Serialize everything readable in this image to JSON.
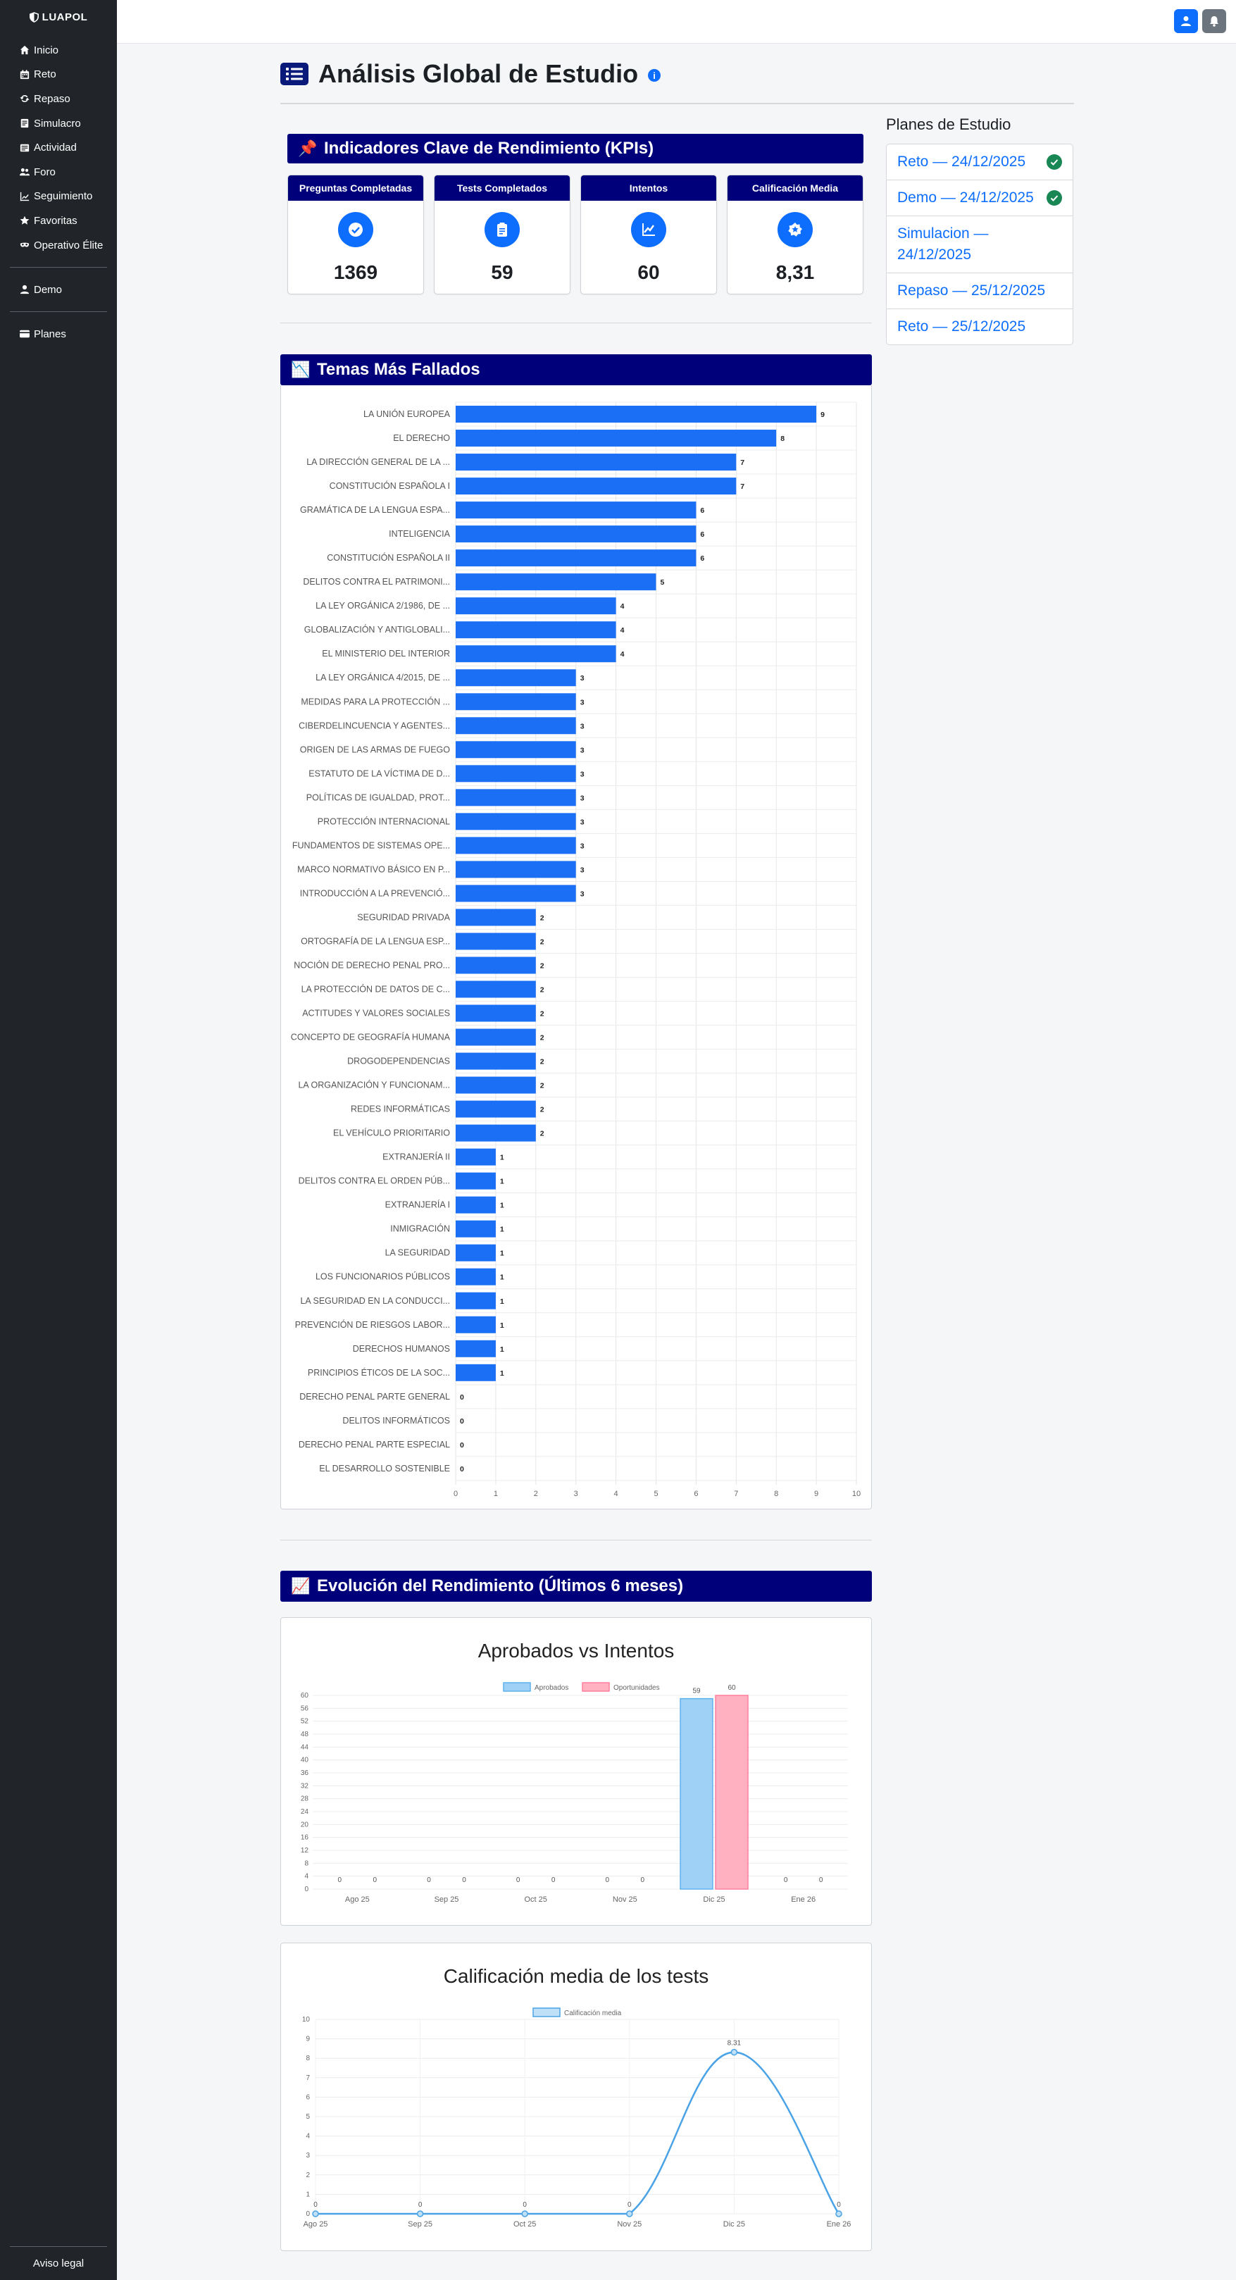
{
  "brand": "LUAPOL",
  "nav": [
    {
      "label": "Inicio",
      "icon": "home-icon"
    },
    {
      "label": "Reto",
      "icon": "calendar-icon"
    },
    {
      "label": "Repaso",
      "icon": "refresh-icon"
    },
    {
      "label": "Simulacro",
      "icon": "document-icon"
    },
    {
      "label": "Actividad",
      "icon": "activity-icon"
    },
    {
      "label": "Foro",
      "icon": "users-icon"
    },
    {
      "label": "Seguimiento",
      "icon": "chart-icon"
    },
    {
      "label": "Favoritas",
      "icon": "star-icon"
    },
    {
      "label": "Operativo Élite",
      "icon": "mask-icon"
    }
  ],
  "sidebar_demo": "Demo",
  "sidebar_planes": "Planes",
  "sidebar_footer": "Aviso legal",
  "page_title": "Análisis Global de Estudio",
  "kpi_section_title": "Indicadores Clave de Rendimiento (KPIs)",
  "kpis": [
    {
      "label": "Preguntas Completadas",
      "value": "1369",
      "icon": "check-circle-icon"
    },
    {
      "label": "Tests Completados",
      "value": "59",
      "icon": "clipboard-icon"
    },
    {
      "label": "Intentos",
      "value": "60",
      "icon": "trend-icon"
    },
    {
      "label": "Calificación Media",
      "value": "8,31",
      "icon": "star-badge-icon"
    }
  ],
  "plans_title": "Planes de Estudio",
  "plans": [
    {
      "label": "Reto — 24/12/2025",
      "done": true
    },
    {
      "label": "Demo — 24/12/2025",
      "done": true
    },
    {
      "label": "Simulacion — 24/12/2025",
      "done": false
    },
    {
      "label": "Repaso — 25/12/2025",
      "done": false
    },
    {
      "label": "Reto — 25/12/2025",
      "done": false
    }
  ],
  "topics_section_title": "Temas Más Fallados",
  "evolution_section_title": "Evolución del Rendimiento (Últimos 6 meses)",
  "chart_data": [
    {
      "type": "bar",
      "orientation": "horizontal",
      "categories": [
        "LA UNIÓN EUROPEA",
        "EL DERECHO",
        "LA DIRECCIÓN GENERAL DE LA ...",
        "CONSTITUCIÓN ESPAÑOLA I",
        "GRAMÁTICA DE LA LENGUA ESPA...",
        "INTELIGENCIA",
        "CONSTITUCIÓN ESPAÑOLA II",
        "DELITOS CONTRA EL PATRIMONI...",
        "LA LEY ORGÁNICA 2/1986, DE ...",
        "GLOBALIZACIÓN Y ANTIGLOBALI...",
        "EL MINISTERIO DEL INTERIOR",
        "LA LEY ORGÁNICA 4/2015, DE ...",
        "MEDIDAS PARA LA PROTECCIÓN ...",
        "CIBERDELINCUENCIA Y AGENTES...",
        "ORIGEN DE LAS ARMAS DE FUEGO",
        "ESTATUTO DE LA VÍCTIMA DE D...",
        "POLÍTICAS DE IGUALDAD, PROT...",
        "PROTECCIÓN INTERNACIONAL",
        "FUNDAMENTOS DE SISTEMAS OPE...",
        "MARCO NORMATIVO BÁSICO EN P...",
        "INTRODUCCIÓN A LA PREVENCIÓ...",
        "SEGURIDAD PRIVADA",
        "ORTOGRAFÍA DE LA LENGUA ESP...",
        "NOCIÓN DE DERECHO PENAL PRO...",
        "LA PROTECCIÓN DE DATOS DE C...",
        "ACTITUDES Y VALORES SOCIALES",
        "CONCEPTO DE GEOGRAFÍA HUMANA",
        "DROGODEPENDENCIAS",
        "LA ORGANIZACIÓN Y FUNCIONAM...",
        "REDES INFORMÁTICAS",
        "EL VEHÍCULO PRIORITARIO",
        "EXTRANJERÍA II",
        "DELITOS CONTRA EL ORDEN PÚB...",
        "EXTRANJERÍA I",
        "INMIGRACIÓN",
        "LA SEGURIDAD",
        "LOS FUNCIONARIOS PÚBLICOS",
        "LA SEGURIDAD EN LA CONDUCCI...",
        "PREVENCIÓN DE RIESGOS LABOR...",
        "DERECHOS HUMANOS",
        "PRINCIPIOS ÉTICOS DE LA SOC...",
        "DERECHO PENAL PARTE GENERAL",
        "DELITOS INFORMÁTICOS",
        "DERECHO PENAL PARTE ESPECIAL",
        "EL DESARROLLO SOSTENIBLE"
      ],
      "values": [
        9,
        8,
        7,
        7,
        6,
        6,
        6,
        5,
        4,
        4,
        4,
        3,
        3,
        3,
        3,
        3,
        3,
        3,
        3,
        3,
        3,
        2,
        2,
        2,
        2,
        2,
        2,
        2,
        2,
        2,
        2,
        1,
        1,
        1,
        1,
        1,
        1,
        1,
        1,
        1,
        1,
        0,
        0,
        0,
        0
      ],
      "xlim": [
        0,
        10
      ],
      "xticks": [
        "0",
        "1",
        "2",
        "3",
        "4",
        "5",
        "6",
        "7",
        "8",
        "9",
        "10"
      ],
      "color": "#1a6ff5"
    },
    {
      "type": "bar",
      "title": "Aprobados vs Intentos",
      "categories": [
        "Ago 25",
        "Sep 25",
        "Oct 25",
        "Nov 25",
        "Dic 25",
        "Ene 26"
      ],
      "series": [
        {
          "name": "Aprobados",
          "values": [
            0,
            0,
            0,
            0,
            59,
            0
          ],
          "color": "#9fd0f5",
          "border": "#5fb2ee"
        },
        {
          "name": "Oportunidades",
          "values": [
            0,
            0,
            0,
            0,
            60,
            0
          ],
          "color": "#ffb1c1",
          "border": "#ff7f9c"
        }
      ],
      "ylim": [
        0,
        60
      ],
      "yticks": [
        "0",
        "4",
        "8",
        "12",
        "16",
        "20",
        "24",
        "28",
        "32",
        "36",
        "40",
        "44",
        "48",
        "52",
        "56",
        "60"
      ],
      "legend": "top"
    },
    {
      "type": "line",
      "title": "Calificación media de los tests",
      "categories": [
        "Ago 25",
        "Sep 25",
        "Oct 25",
        "Nov 25",
        "Dic 25",
        "Ene 26"
      ],
      "series": [
        {
          "name": "Calificación media",
          "values": [
            0,
            0,
            0,
            0,
            8.31,
            0
          ],
          "labels": [
            "0",
            "0",
            "0",
            "0",
            "8.31",
            "0"
          ],
          "color": "#4aa3e6"
        }
      ],
      "ylim": [
        0,
        10
      ],
      "yticks": [
        "0",
        "1",
        "2",
        "3",
        "4",
        "5",
        "6",
        "7",
        "8",
        "9",
        "10"
      ],
      "legend": "top"
    }
  ]
}
